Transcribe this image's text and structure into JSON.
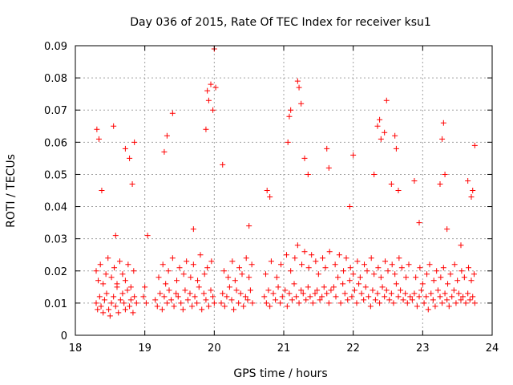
{
  "chart_data": {
    "type": "scatter",
    "title": "Day 036 of 2015, Rate Of TEC Index for receiver ksu1",
    "xlabel": "GPS time / hours",
    "ylabel": "ROTI / TECUs",
    "xlim": [
      18,
      24
    ],
    "ylim": [
      0,
      0.09
    ],
    "xticks": [
      "18",
      "19",
      "20",
      "21",
      "22",
      "23",
      "24"
    ],
    "yticks": [
      "0",
      "0.01",
      "0.02",
      "0.03",
      "0.04",
      "0.05",
      "0.06",
      "0.07",
      "0.08",
      "0.09"
    ],
    "grid": true,
    "marker": "+",
    "marker_color": "#ff0000",
    "series": [
      {
        "name": "ROTI",
        "x": [
          18.3,
          18.32,
          18.35,
          18.37,
          18.4,
          18.42,
          18.45,
          18.48,
          18.5,
          18.52,
          18.55,
          18.58,
          18.6,
          18.62,
          18.65,
          18.68,
          18.7,
          18.72,
          18.75,
          18.78,
          18.8,
          18.83,
          18.85,
          18.88,
          18.3,
          18.33,
          18.36,
          18.4,
          18.44,
          18.47,
          18.52,
          18.56,
          18.6,
          18.64,
          18.68,
          18.72,
          18.76,
          18.8,
          18.84,
          18.31,
          18.34,
          18.38,
          18.55,
          18.58,
          18.72,
          18.78,
          18.82,
          18.85,
          18.98,
          19.0,
          19.02,
          19.04,
          19.15,
          19.18,
          19.22,
          19.25,
          19.28,
          19.32,
          19.35,
          19.38,
          19.42,
          19.45,
          19.48,
          19.52,
          19.55,
          19.58,
          19.62,
          19.65,
          19.68,
          19.72,
          19.75,
          19.78,
          19.82,
          19.85,
          19.88,
          19.92,
          19.95,
          19.98,
          20.0,
          19.2,
          19.26,
          19.3,
          19.34,
          19.4,
          19.46,
          19.5,
          19.56,
          19.6,
          19.66,
          19.7,
          19.76,
          19.8,
          19.86,
          19.9,
          19.96,
          19.28,
          19.32,
          19.4,
          19.7,
          19.88,
          19.9,
          19.92,
          19.95,
          19.98,
          20.0,
          20.02,
          20.1,
          20.12,
          20.15,
          20.18,
          20.22,
          20.25,
          20.28,
          20.32,
          20.35,
          20.38,
          20.42,
          20.45,
          20.48,
          20.52,
          20.55,
          20.14,
          20.2,
          20.26,
          20.3,
          20.36,
          20.4,
          20.46,
          20.5,
          20.54,
          20.12,
          20.5,
          20.72,
          20.75,
          20.78,
          20.8,
          20.85,
          20.88,
          20.92,
          20.95,
          20.98,
          21.02,
          21.05,
          21.08,
          21.12,
          21.15,
          21.18,
          21.22,
          21.25,
          21.28,
          21.32,
          21.35,
          21.38,
          21.42,
          21.45,
          21.48,
          21.52,
          21.55,
          21.58,
          21.62,
          21.65,
          21.68,
          20.74,
          20.82,
          20.9,
          20.96,
          21.04,
          21.1,
          21.16,
          21.2,
          21.26,
          21.3,
          21.36,
          21.4,
          21.46,
          21.5,
          21.56,
          21.6,
          21.66,
          20.76,
          20.8,
          21.06,
          21.08,
          21.1,
          21.2,
          21.22,
          21.25,
          21.3,
          21.35,
          21.62,
          21.65,
          21.72,
          21.75,
          21.78,
          21.82,
          21.85,
          21.88,
          21.92,
          21.95,
          21.98,
          22.02,
          22.05,
          22.08,
          22.12,
          22.15,
          22.18,
          22.22,
          22.25,
          22.28,
          22.32,
          22.35,
          22.38,
          22.42,
          22.45,
          22.48,
          22.52,
          22.55,
          22.58,
          22.62,
          22.65,
          22.68,
          22.72,
          22.75,
          22.78,
          22.82,
          21.74,
          21.8,
          21.86,
          21.9,
          21.96,
          22.0,
          22.06,
          22.1,
          22.16,
          22.2,
          22.26,
          22.3,
          22.36,
          22.4,
          22.46,
          22.5,
          22.56,
          22.6,
          22.66,
          22.7,
          22.76,
          22.8,
          21.95,
          22.0,
          22.3,
          22.35,
          22.38,
          22.4,
          22.45,
          22.48,
          22.55,
          22.6,
          22.62,
          22.65,
          22.85,
          22.88,
          22.92,
          22.95,
          22.98,
          23.02,
          23.05,
          23.08,
          23.12,
          23.15,
          23.18,
          23.22,
          23.25,
          23.28,
          23.32,
          23.35,
          23.38,
          23.42,
          23.45,
          23.48,
          23.52,
          23.55,
          23.58,
          23.62,
          23.65,
          23.68,
          23.72,
          23.75,
          22.9,
          22.96,
          23.0,
          23.06,
          23.1,
          23.16,
          23.2,
          23.26,
          23.3,
          23.36,
          23.4,
          23.46,
          23.5,
          23.56,
          23.6,
          23.66,
          23.7,
          23.74,
          22.88,
          22.95,
          23.25,
          23.28,
          23.3,
          23.32,
          23.35,
          23.55,
          23.65,
          23.7,
          23.72,
          23.75
        ],
        "y": [
          0.01,
          0.008,
          0.012,
          0.009,
          0.007,
          0.011,
          0.013,
          0.008,
          0.006,
          0.01,
          0.012,
          0.009,
          0.015,
          0.007,
          0.011,
          0.013,
          0.01,
          0.008,
          0.014,
          0.009,
          0.011,
          0.007,
          0.012,
          0.01,
          0.02,
          0.017,
          0.022,
          0.016,
          0.019,
          0.024,
          0.018,
          0.021,
          0.016,
          0.023,
          0.019,
          0.017,
          0.022,
          0.015,
          0.02,
          0.064,
          0.061,
          0.045,
          0.065,
          0.031,
          0.058,
          0.055,
          0.047,
          0.06,
          0.012,
          0.015,
          0.01,
          0.031,
          0.011,
          0.009,
          0.013,
          0.008,
          0.012,
          0.01,
          0.014,
          0.011,
          0.009,
          0.013,
          0.012,
          0.01,
          0.008,
          0.014,
          0.011,
          0.013,
          0.009,
          0.012,
          0.01,
          0.015,
          0.008,
          0.013,
          0.011,
          0.009,
          0.014,
          0.012,
          0.01,
          0.018,
          0.022,
          0.016,
          0.02,
          0.024,
          0.017,
          0.021,
          0.019,
          0.023,
          0.018,
          0.022,
          0.017,
          0.025,
          0.019,
          0.021,
          0.023,
          0.057,
          0.062,
          0.069,
          0.033,
          0.064,
          0.076,
          0.073,
          0.078,
          0.07,
          0.089,
          0.077,
          0.01,
          0.013,
          0.009,
          0.012,
          0.015,
          0.011,
          0.008,
          0.014,
          0.01,
          0.013,
          0.009,
          0.012,
          0.011,
          0.014,
          0.01,
          0.02,
          0.018,
          0.023,
          0.017,
          0.021,
          0.019,
          0.024,
          0.018,
          0.022,
          0.053,
          0.034,
          0.012,
          0.01,
          0.014,
          0.009,
          0.013,
          0.011,
          0.015,
          0.01,
          0.012,
          0.014,
          0.009,
          0.013,
          0.011,
          0.016,
          0.012,
          0.01,
          0.014,
          0.013,
          0.011,
          0.015,
          0.012,
          0.01,
          0.013,
          0.014,
          0.011,
          0.012,
          0.015,
          0.013,
          0.01,
          0.014,
          0.019,
          0.023,
          0.018,
          0.022,
          0.025,
          0.02,
          0.024,
          0.028,
          0.022,
          0.026,
          0.021,
          0.025,
          0.023,
          0.019,
          0.024,
          0.021,
          0.026,
          0.045,
          0.043,
          0.06,
          0.068,
          0.07,
          0.079,
          0.077,
          0.072,
          0.055,
          0.05,
          0.058,
          0.052,
          0.015,
          0.012,
          0.018,
          0.01,
          0.016,
          0.013,
          0.011,
          0.017,
          0.012,
          0.014,
          0.01,
          0.016,
          0.013,
          0.011,
          0.015,
          0.012,
          0.009,
          0.014,
          0.011,
          0.013,
          0.01,
          0.015,
          0.012,
          0.014,
          0.011,
          0.013,
          0.01,
          0.016,
          0.012,
          0.014,
          0.011,
          0.013,
          0.01,
          0.012,
          0.022,
          0.025,
          0.02,
          0.024,
          0.021,
          0.019,
          0.023,
          0.018,
          0.022,
          0.02,
          0.024,
          0.019,
          0.021,
          0.018,
          0.023,
          0.02,
          0.022,
          0.019,
          0.024,
          0.021,
          0.018,
          0.022,
          0.04,
          0.056,
          0.05,
          0.065,
          0.067,
          0.061,
          0.063,
          0.073,
          0.047,
          0.062,
          0.058,
          0.045,
          0.011,
          0.013,
          0.009,
          0.012,
          0.014,
          0.01,
          0.012,
          0.008,
          0.013,
          0.011,
          0.009,
          0.014,
          0.012,
          0.01,
          0.013,
          0.011,
          0.009,
          0.012,
          0.014,
          0.01,
          0.013,
          0.011,
          0.012,
          0.01,
          0.013,
          0.011,
          0.012,
          0.01,
          0.018,
          0.021,
          0.016,
          0.019,
          0.022,
          0.017,
          0.02,
          0.018,
          0.021,
          0.016,
          0.019,
          0.022,
          0.017,
          0.02,
          0.018,
          0.021,
          0.017,
          0.019,
          0.048,
          0.035,
          0.047,
          0.061,
          0.066,
          0.05,
          0.033,
          0.028,
          0.048,
          0.043,
          0.045,
          0.059
        ]
      }
    ]
  }
}
